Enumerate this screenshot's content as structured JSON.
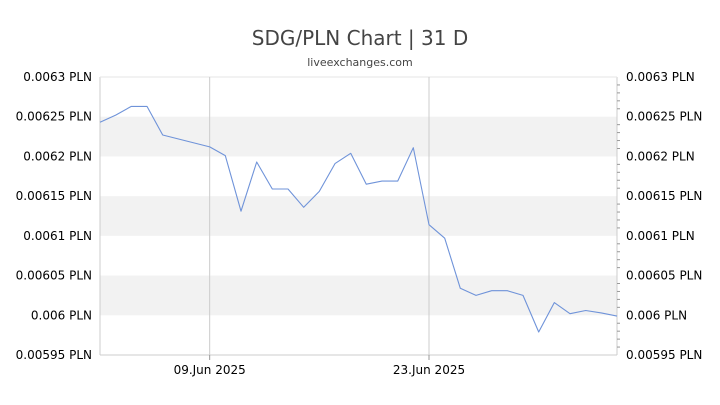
{
  "header": {
    "title": "SDG/PLN Chart | 31 D",
    "subtitle": "liveexchanges.com"
  },
  "chart_data": {
    "type": "line",
    "title": "SDG/PLN Chart | 31 D",
    "subtitle": "liveexchanges.com",
    "xlabel": "",
    "ylabel": "",
    "ylim": [
      0.00595,
      0.0063
    ],
    "y_ticks": [
      0.0063,
      0.00625,
      0.0062,
      0.00615,
      0.0061,
      0.00605,
      0.006,
      0.00595
    ],
    "y_tick_labels": [
      "0.0063 PLN",
      "0.00625 PLN",
      "0.0062 PLN",
      "0.00615 PLN",
      "0.0061 PLN",
      "0.00605 PLN",
      "0.006 PLN",
      "0.00595 PLN"
    ],
    "x_tick_labels": [
      {
        "label": "09.Jun 2025",
        "date": "2025-06-09"
      },
      {
        "label": "23.Jun 2025",
        "date": "2025-06-23"
      }
    ],
    "grid": true,
    "legend": "none",
    "line_color": "#6f93d9",
    "band_color": "#f2f2f2",
    "series": [
      {
        "x": [
          "2025-06-02",
          "2025-06-03",
          "2025-06-04",
          "2025-06-05",
          "2025-06-06",
          "2025-06-09",
          "2025-06-10",
          "2025-06-11",
          "2025-06-12",
          "2025-06-13",
          "2025-06-14",
          "2025-06-15",
          "2025-06-16",
          "2025-06-17",
          "2025-06-18",
          "2025-06-19",
          "2025-06-20",
          "2025-06-21",
          "2025-06-22",
          "2025-06-23",
          "2025-06-24",
          "2025-06-25",
          "2025-06-26",
          "2025-06-27",
          "2025-06-28",
          "2025-06-29",
          "2025-06-30",
          "2025-07-01",
          "2025-07-02",
          "2025-07-03",
          "2025-07-04",
          "2025-07-05"
        ],
        "values": [
          0.006243,
          0.006252,
          0.006263,
          0.006263,
          0.006227,
          0.006212,
          0.006201,
          0.006131,
          0.006193,
          0.006159,
          0.006159,
          0.006136,
          0.006156,
          0.006191,
          0.006204,
          0.006165,
          0.006169,
          0.006169,
          0.006211,
          0.006114,
          0.006097,
          0.006034,
          0.006025,
          0.006031,
          0.006031,
          0.006025,
          0.005979,
          0.006016,
          0.006002,
          0.006006,
          0.006003,
          0.005999
        ]
      }
    ]
  }
}
